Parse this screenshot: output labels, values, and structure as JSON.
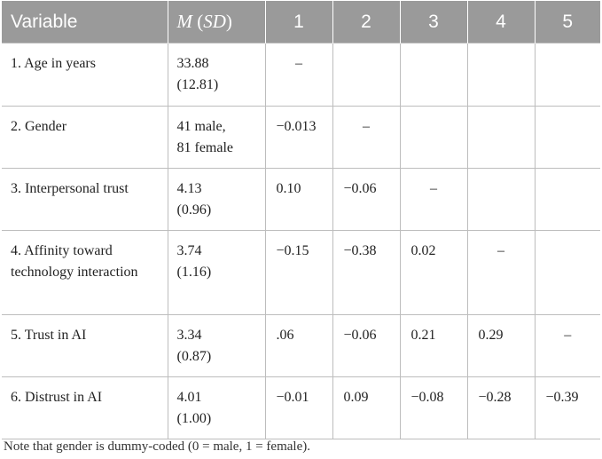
{
  "header": {
    "variable": "Variable",
    "m": "M",
    "sd": "SD",
    "cols": [
      "1",
      "2",
      "3",
      "4",
      "5"
    ]
  },
  "rows": [
    {
      "variable": "1. Age in years",
      "msd_line1": "33.88",
      "msd_line2": "(12.81)",
      "values": [
        "–",
        "",
        "",
        "",
        ""
      ]
    },
    {
      "variable": "2. Gender",
      "msd_line1": "41 male,",
      "msd_line2": "81 female",
      "values": [
        "−0.013",
        "–",
        "",
        "",
        ""
      ]
    },
    {
      "variable": "3. Interpersonal trust",
      "msd_line1": "4.13",
      "msd_line2": "(0.96)",
      "values": [
        "0.10",
        "−0.06",
        "–",
        "",
        ""
      ]
    },
    {
      "variable": "4. Affinity toward technology interaction",
      "msd_line1": "3.74",
      "msd_line2": "(1.16)",
      "values": [
        "−0.15",
        "−0.38",
        "0.02",
        "–",
        ""
      ]
    },
    {
      "variable": "5. Trust in AI",
      "msd_line1": "3.34",
      "msd_line2": "(0.87)",
      "values": [
        ".06",
        "−0.06",
        "0.21",
        "0.29",
        "–"
      ]
    },
    {
      "variable": "6. Distrust in AI",
      "msd_line1": "4.01",
      "msd_line2": "(1.00)",
      "values": [
        "−0.01",
        "0.09",
        "−0.08",
        "−0.28",
        "−0.39"
      ]
    }
  ],
  "note": "Note that gender is dummy-coded (0 = male, 1 = female).",
  "colors": {
    "header_bg": "#9a9a9a",
    "header_text": "#ffffff",
    "grid": "#bdbdbd",
    "text": "#222222"
  }
}
